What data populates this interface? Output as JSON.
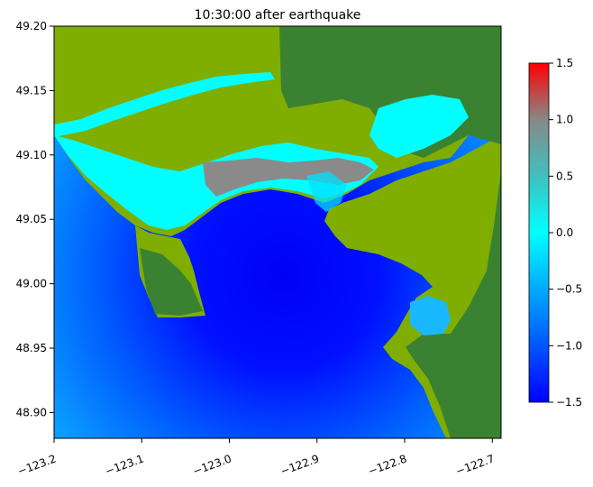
{
  "chart_data": {
    "type": "heatmap",
    "title": "10:30:00 after earthquake",
    "xlabel": "",
    "ylabel": "",
    "xlim": [
      -123.2,
      -122.69
    ],
    "ylim": [
      48.88,
      49.2
    ],
    "x_ticks": [
      {
        "value": -123.2,
        "label": "−123.2"
      },
      {
        "value": -123.1,
        "label": "−123.1"
      },
      {
        "value": -123.0,
        "label": "−123.0"
      },
      {
        "value": -122.9,
        "label": "−122.9"
      },
      {
        "value": -122.8,
        "label": "−122.8"
      },
      {
        "value": -122.7,
        "label": "−122.7"
      }
    ],
    "y_ticks": [
      {
        "value": 49.2,
        "label": "49.20"
      },
      {
        "value": 49.15,
        "label": "49.15"
      },
      {
        "value": 49.1,
        "label": "49.10"
      },
      {
        "value": 49.05,
        "label": "49.05"
      },
      {
        "value": 49.0,
        "label": "49.00"
      },
      {
        "value": 48.95,
        "label": "48.95"
      },
      {
        "value": 48.9,
        "label": "48.90"
      }
    ],
    "colorbar": {
      "range": [
        -1.5,
        1.5
      ],
      "ticks": [
        {
          "value": 1.5,
          "label": "1.5"
        },
        {
          "value": 1.0,
          "label": "1.0"
        },
        {
          "value": 0.5,
          "label": "0.5"
        },
        {
          "value": 0.0,
          "label": "0.0"
        },
        {
          "value": -0.5,
          "label": "−0.5"
        },
        {
          "value": -1.0,
          "label": "−1.0"
        },
        {
          "value": -1.5,
          "label": "−1.5"
        }
      ],
      "stops": [
        {
          "value": -1.5,
          "color": "#0000ff"
        },
        {
          "value": -0.75,
          "color": "#0080ff"
        },
        {
          "value": 0.0,
          "color": "#00ffff"
        },
        {
          "value": 0.5,
          "color": "#40c0c0"
        },
        {
          "value": 1.0,
          "color": "#888888"
        },
        {
          "value": 1.5,
          "color": "#ff0000"
        }
      ]
    },
    "colors": {
      "land_low": "#7fae00",
      "land_high": "#3a8232",
      "water_deep": "#0000ff",
      "water_shallow": "#0a8cff",
      "flood": "#00ffff",
      "raised": "#8a8a8a"
    }
  }
}
